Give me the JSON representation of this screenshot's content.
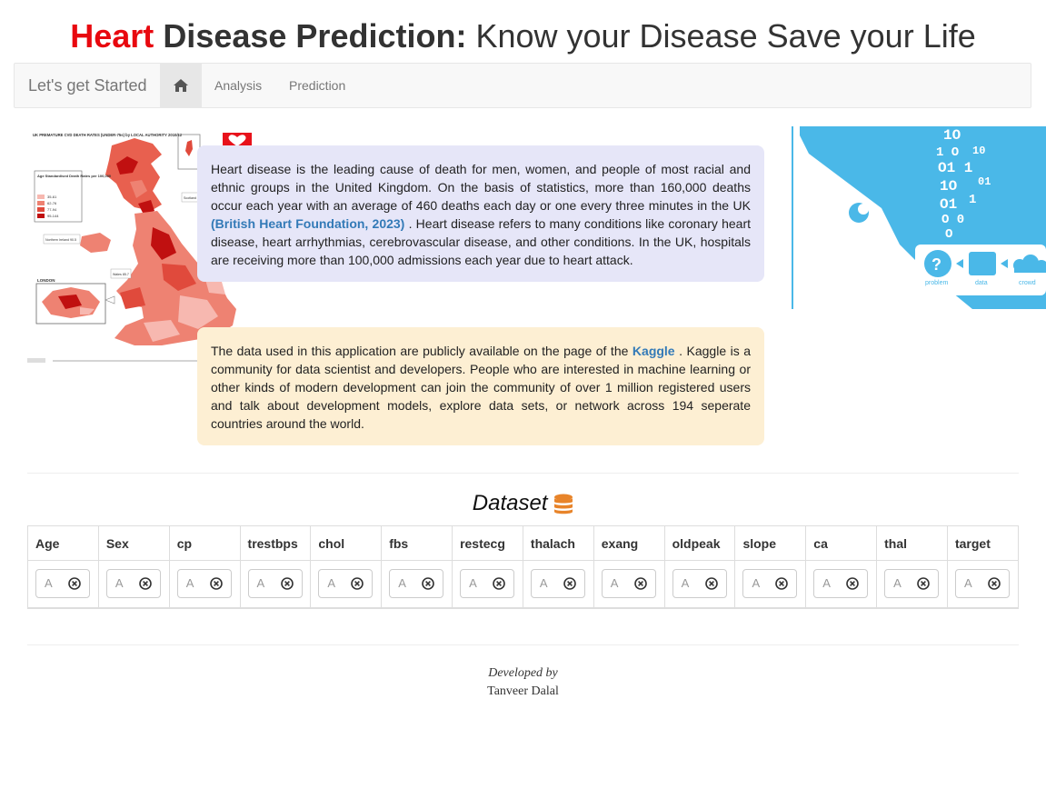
{
  "header": {
    "title_red": "Heart",
    "title_bold": "Disease Prediction:",
    "title_rest": "Know your Disease Save your Life"
  },
  "navbar": {
    "brand": "Let's get Started",
    "home_icon": "home-icon",
    "links": [
      "Analysis",
      "Prediction"
    ]
  },
  "info": {
    "card1_before": "Heart disease is the leading cause of death for men, women, and people of most racial and ethnic groups in the United Kingdom. On the basis of statistics, more than 160,000 deaths occur each year with an average of 460 deaths each day or one every three minutes in the UK",
    "card1_link": "(British Heart Foundation, 2023)",
    "card1_after": ". Heart disease refers to many conditions like coronary heart disease, heart arrhythmias, cerebrovascular disease, and other conditions. In the UK, hospitals are receiving more than 100,000 admissions each year due to heart attack.",
    "card2_before": "The data used in this application are publicly available on the page of the",
    "card2_link": "Kaggle",
    "card2_after": ". Kaggle is a community for data scientist and developers. People who are interested in machine learning or other kinds of modern development can join the community of over 1 million registered users and talk about development models, explore data sets, or network across 194 seperate countries around the world."
  },
  "map_image": {
    "title": "UK PREMATURE CVD DEATH RATES (UNDER-75s) by LOCAL AUTHORITY 2010/12",
    "legend_title": "Age Standardised Death Rates per 100,000",
    "legend_items": [
      "35-61",
      "62-76",
      "77-94",
      "95-144"
    ],
    "legend_colors": [
      "#f7b8b0",
      "#ee8272",
      "#e04a3c",
      "#c01010"
    ],
    "label_ni": "Northern Ireland 90.5",
    "label_wales": "Wales 85.7",
    "label_scotland": "Scotland 89.2",
    "label_london": "LONDON"
  },
  "right_image": {
    "labels": [
      "problem",
      "data",
      "crowd"
    ]
  },
  "dataset": {
    "title": "Dataset",
    "icon": "database-icon",
    "columns": [
      "Age",
      "Sex",
      "cp",
      "trestbps",
      "chol",
      "fbs",
      "restecg",
      "thalach",
      "exang",
      "oldpeak",
      "slope",
      "ca",
      "thal",
      "target"
    ],
    "filter_placeholder": "A"
  },
  "footer": {
    "developed_by": "Developed by",
    "author": "Tanveer Dalal"
  }
}
